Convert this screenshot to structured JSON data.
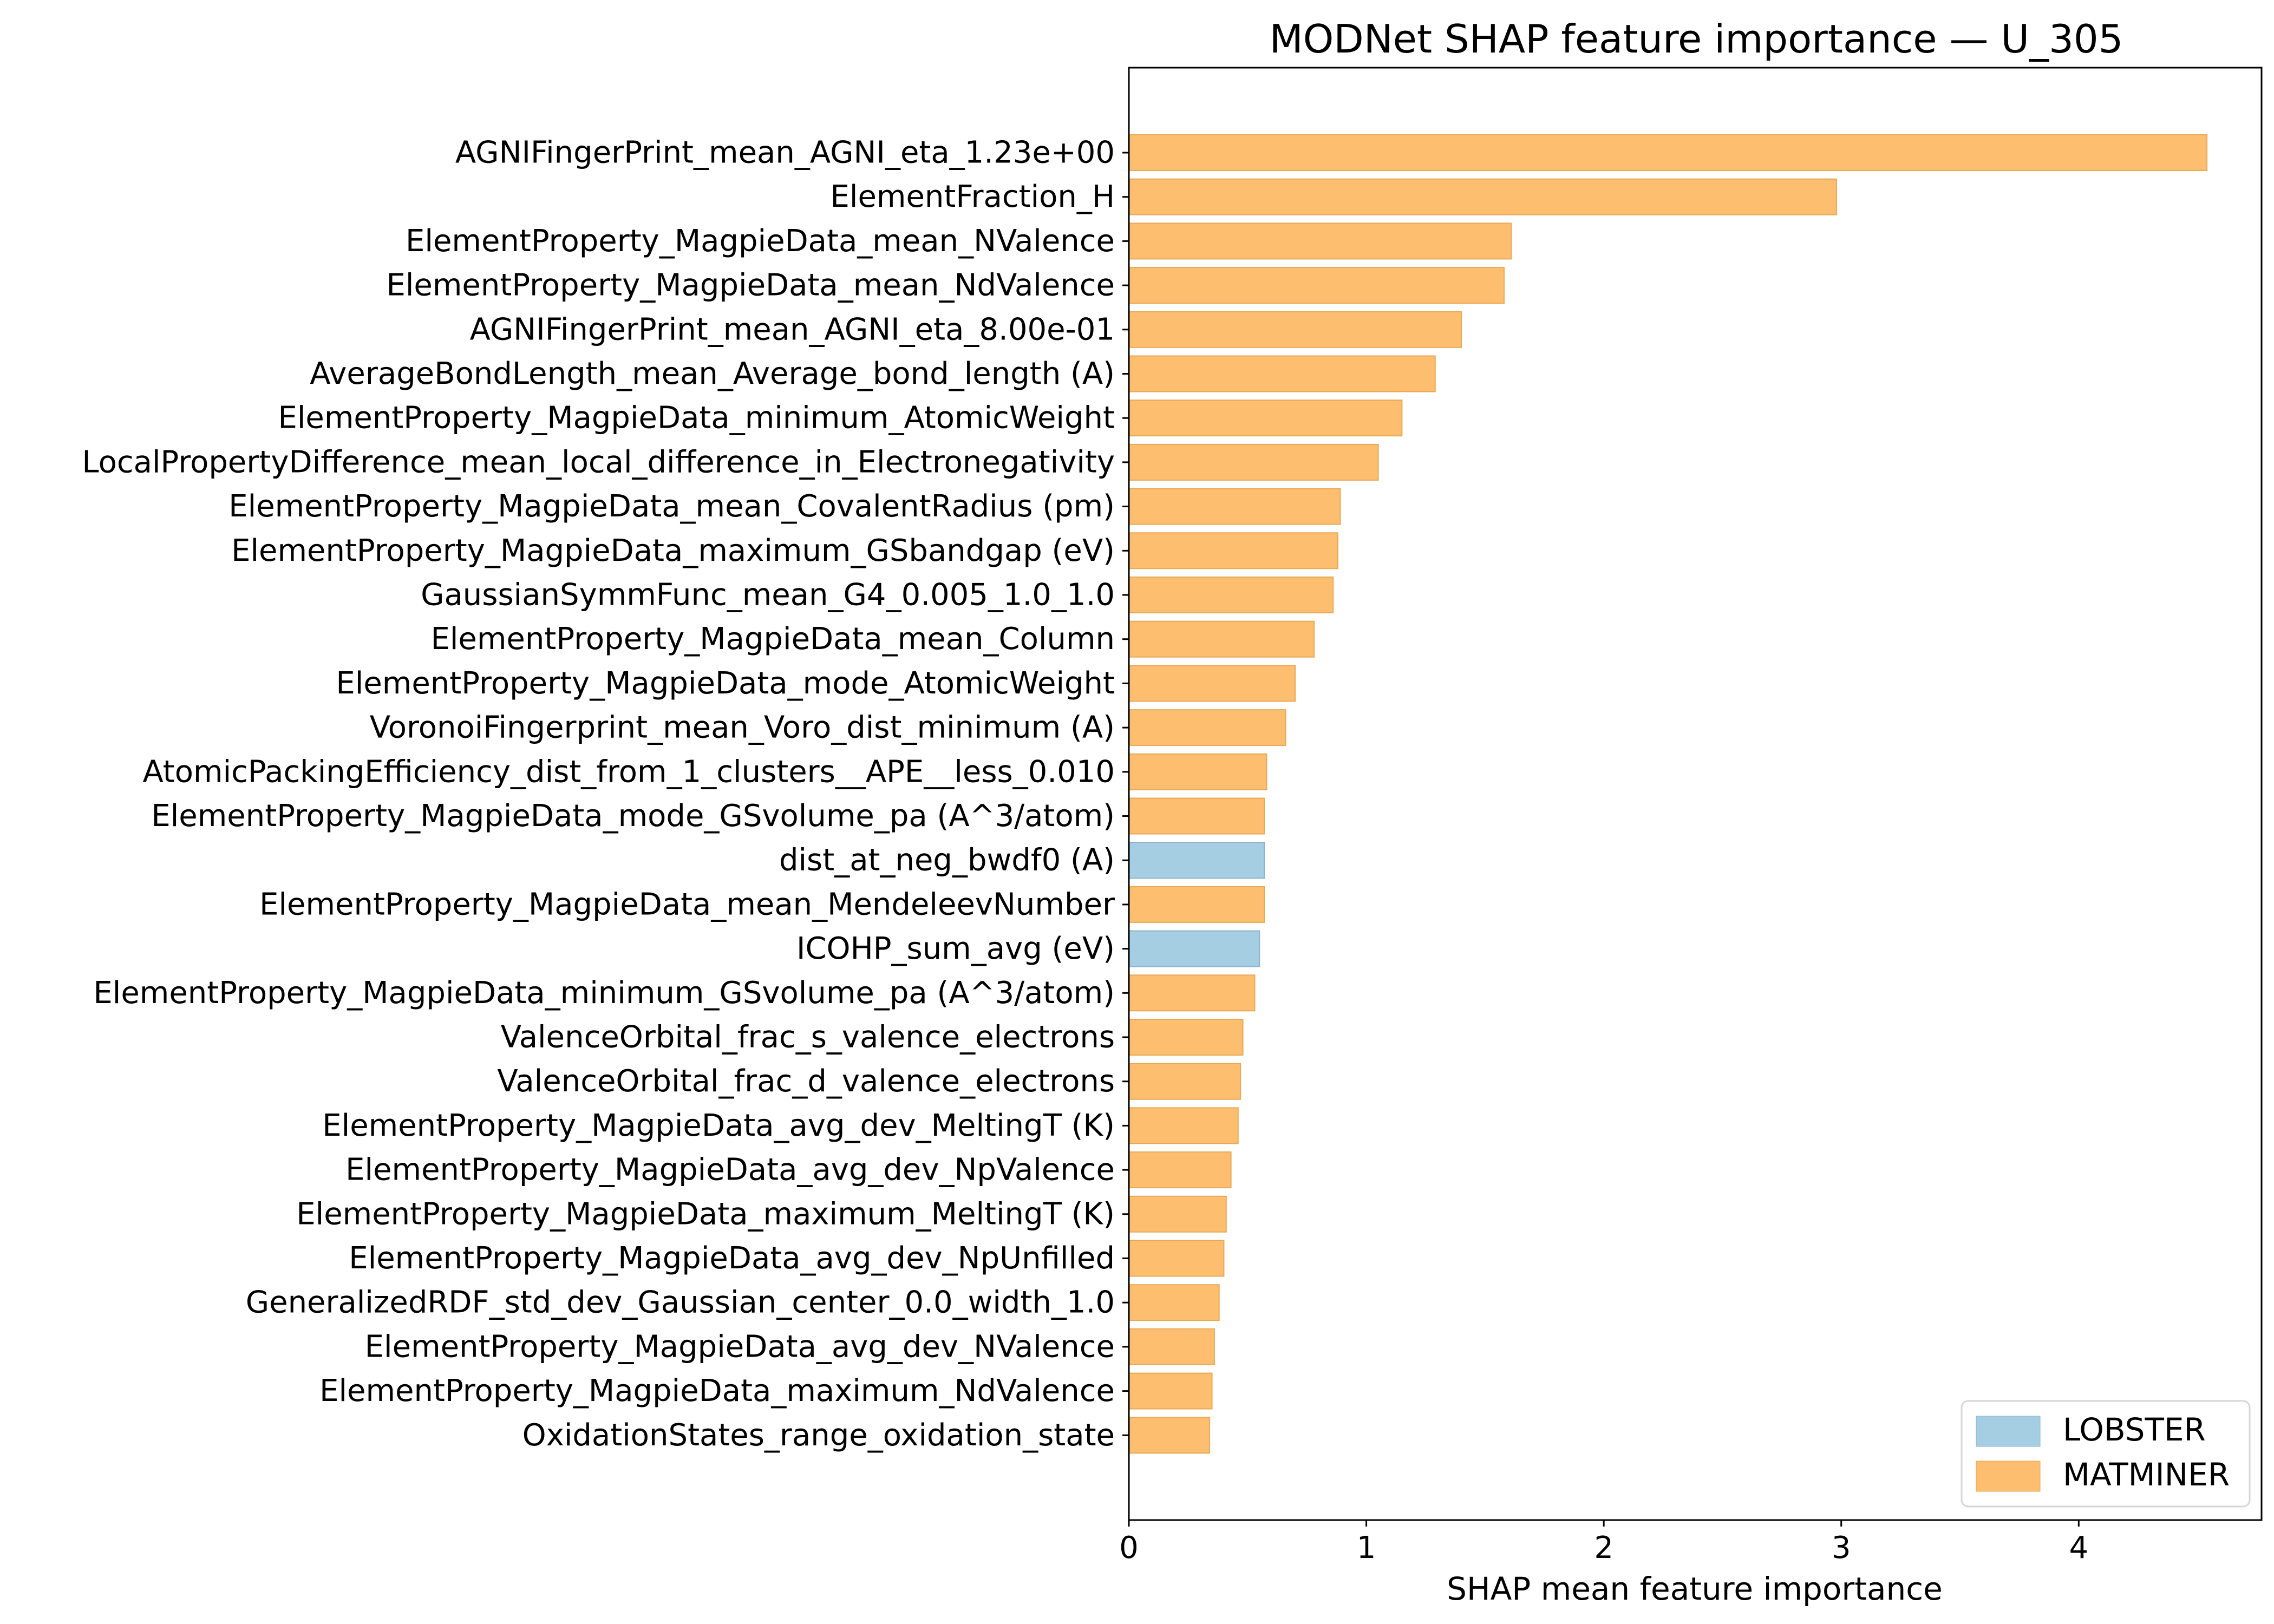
{
  "chart_data": {
    "type": "bar",
    "orientation": "horizontal",
    "title": "MODNet SHAP feature importance — U_305",
    "xlabel": "SHAP mean feature importance",
    "ylabel": "",
    "xlim": [
      0,
      4.77
    ],
    "xticks": [
      0,
      1,
      2,
      3,
      4
    ],
    "grid": false,
    "legend_position": "lower-right",
    "colors": {
      "LOBSTER": "#a6cee3",
      "MATMINER": "#fdbf6f"
    },
    "legend": [
      {
        "name": "LOBSTER",
        "color": "#a6cee3"
      },
      {
        "name": "MATMINER",
        "color": "#fdbf6f"
      }
    ],
    "categories": [
      "AGNIFingerPrint_mean_AGNI_eta_1.23e+00",
      "ElementFraction_H",
      "ElementProperty_MagpieData_mean_NValence",
      "ElementProperty_MagpieData_mean_NdValence",
      "AGNIFingerPrint_mean_AGNI_eta_8.00e-01",
      "AverageBondLength_mean_Average_bond_length (A)",
      "ElementProperty_MagpieData_minimum_AtomicWeight",
      "LocalPropertyDifference_mean_local_difference_in_Electronegativity",
      "ElementProperty_MagpieData_mean_CovalentRadius (pm)",
      "ElementProperty_MagpieData_maximum_GSbandgap (eV)",
      "GaussianSymmFunc_mean_G4_0.005_1.0_1.0",
      "ElementProperty_MagpieData_mean_Column",
      "ElementProperty_MagpieData_mode_AtomicWeight",
      "VoronoiFingerprint_mean_Voro_dist_minimum (A)",
      "AtomicPackingEfficiency_dist_from_1_clusters__APE__less_0.010",
      "ElementProperty_MagpieData_mode_GSvolume_pa (A^3/atom)",
      "dist_at_neg_bwdf0 (A)",
      "ElementProperty_MagpieData_mean_MendeleevNumber",
      "ICOHP_sum_avg (eV)",
      "ElementProperty_MagpieData_minimum_GSvolume_pa (A^3/atom)",
      "ValenceOrbital_frac_s_valence_electrons",
      "ValenceOrbital_frac_d_valence_electrons",
      "ElementProperty_MagpieData_avg_dev_MeltingT (K)",
      "ElementProperty_MagpieData_avg_dev_NpValence",
      "ElementProperty_MagpieData_maximum_MeltingT (K)",
      "ElementProperty_MagpieData_avg_dev_NpUnfilled",
      "GeneralizedRDF_std_dev_Gaussian_center_0.0_width_1.0",
      "ElementProperty_MagpieData_avg_dev_NValence",
      "ElementProperty_MagpieData_maximum_NdValence",
      "OxidationStates_range_oxidation_state"
    ],
    "values": [
      4.54,
      2.98,
      1.61,
      1.58,
      1.4,
      1.29,
      1.15,
      1.05,
      0.89,
      0.88,
      0.86,
      0.78,
      0.7,
      0.66,
      0.58,
      0.57,
      0.57,
      0.57,
      0.55,
      0.53,
      0.48,
      0.47,
      0.46,
      0.43,
      0.41,
      0.4,
      0.38,
      0.36,
      0.35,
      0.34
    ],
    "groups": [
      "MATMINER",
      "MATMINER",
      "MATMINER",
      "MATMINER",
      "MATMINER",
      "MATMINER",
      "MATMINER",
      "MATMINER",
      "MATMINER",
      "MATMINER",
      "MATMINER",
      "MATMINER",
      "MATMINER",
      "MATMINER",
      "MATMINER",
      "MATMINER",
      "LOBSTER",
      "MATMINER",
      "LOBSTER",
      "MATMINER",
      "MATMINER",
      "MATMINER",
      "MATMINER",
      "MATMINER",
      "MATMINER",
      "MATMINER",
      "MATMINER",
      "MATMINER",
      "MATMINER",
      "MATMINER"
    ]
  }
}
